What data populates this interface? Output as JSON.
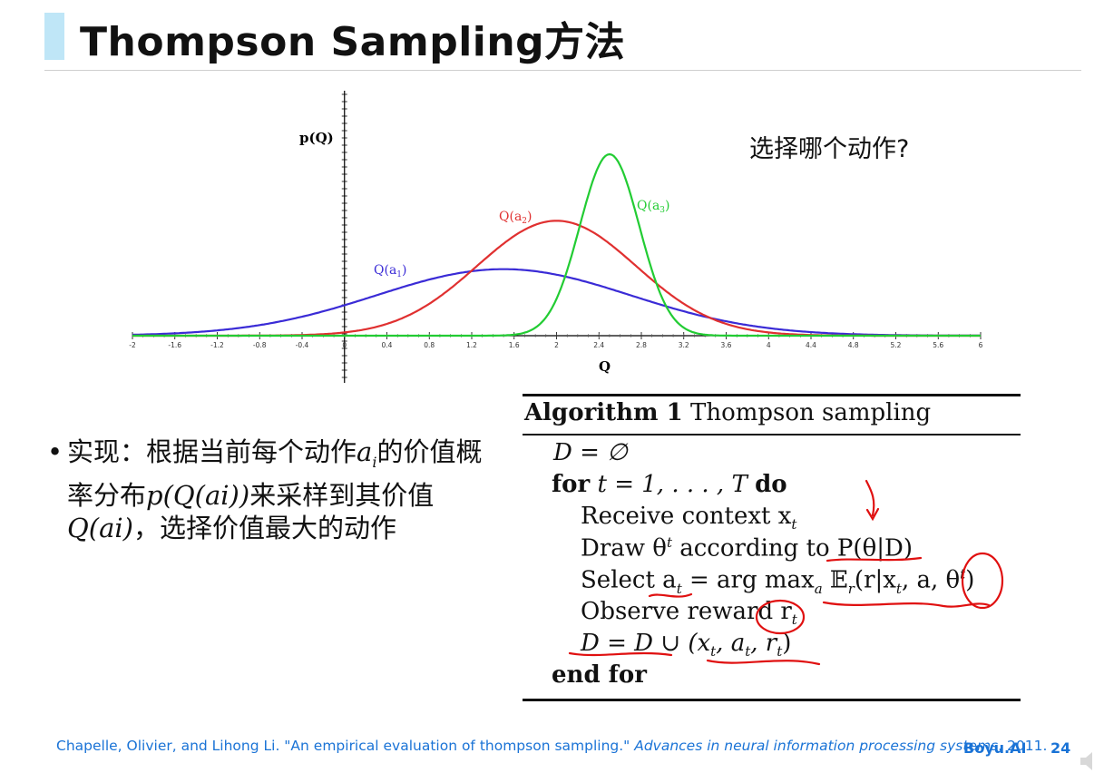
{
  "slide": {
    "title": "Thompson Sampling方法",
    "question": "选择哪个动作?",
    "bullet": {
      "prefix": "实现：根据当前每个动作",
      "var_a": "a",
      "var_sub": "i",
      "mid1": "的价值概率分布",
      "formula1": "p(Q(ai))",
      "mid2": "来采样到其价值",
      "formula2": "Q(ai)",
      "suffix": "，选择价值最大的动作"
    },
    "citation": {
      "text1": "Chapelle, Olivier, and Lihong Li. \"An empirical evaluation of thompson sampling.\" ",
      "venue": "Advances in neural information processing systems",
      "year": ". 2011."
    },
    "brand": "Boyu.AI",
    "page_number": "24"
  },
  "chart_data": {
    "type": "line",
    "title": "",
    "xlabel": "Q",
    "ylabel": "p(Q)",
    "xlim": [
      -2,
      6.0
    ],
    "ylim": [
      0,
      1.5
    ],
    "x_ticks": [
      "-2",
      "-1.6",
      "-1.2",
      "-0.8",
      "-0.4",
      "0",
      "0.4",
      "0.8",
      "1.2",
      "1.6",
      "2",
      "2.4",
      "2.8",
      "3.2",
      "3.6",
      "4",
      "4.4",
      "4.8",
      "5.2",
      "5.6",
      "6"
    ],
    "series": [
      {
        "name": "Q(a1)",
        "label_main": "Q(a",
        "label_sub": "1",
        "mean": 1.5,
        "std": 1.2,
        "peak": 0.55,
        "color": "#3a2bd6"
      },
      {
        "name": "Q(a2)",
        "label_main": "Q(a",
        "label_sub": "2",
        "mean": 2.0,
        "std": 0.75,
        "peak": 0.95,
        "color": "#e03030"
      },
      {
        "name": "Q(a3)",
        "label_main": "Q(a",
        "label_sub": "3",
        "mean": 2.5,
        "std": 0.28,
        "peak": 1.5,
        "color": "#22cc33"
      }
    ]
  },
  "algorithm": {
    "heading_bold": "Algorithm 1",
    "heading_rest": " Thompson sampling",
    "lines": {
      "l1": "D = ∅",
      "l2_for": "for",
      "l2_mid": " t = 1, . . . , T ",
      "l2_do": "do",
      "l3": "Receive context x",
      "l3_sub": "t",
      "l4": "Draw θ",
      "l4_sup": "t",
      "l4_rest": " according to P(θ|D)",
      "l5": "Select a",
      "l5_sub": "t",
      "l5_rest": " = arg max",
      "l5_sub2": "a",
      "l5_rest2": " 𝔼",
      "l5_sub3": "r",
      "l5_rest3": "(r|x",
      "l5_sub4": "t",
      "l5_rest4": ", a, θ",
      "l5_sup": "t",
      "l5_end": ")",
      "l6": "Observe reward r",
      "l6_sub": "t",
      "l7": "D = D ∪ (x",
      "l7_sub1": "t",
      "l7_mid": ", a",
      "l7_sub2": "t",
      "l7_mid2": ", r",
      "l7_sub3": "t",
      "l7_end": ")",
      "l8": "end for"
    }
  }
}
